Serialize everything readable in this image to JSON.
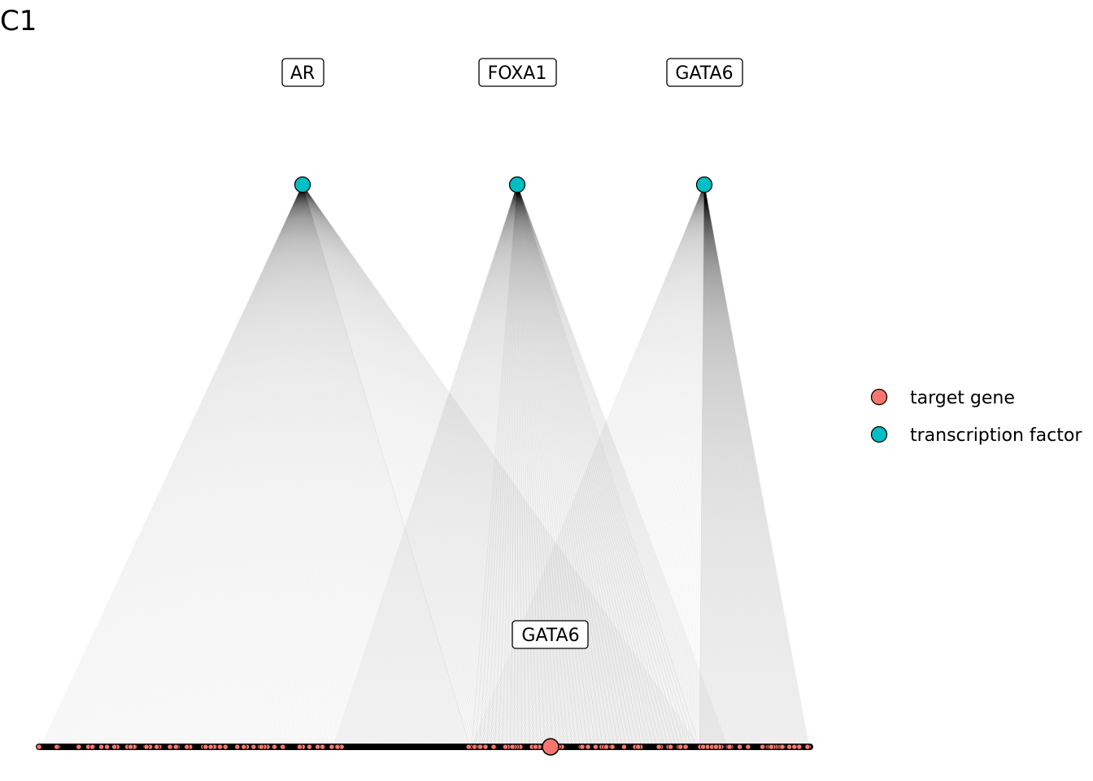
{
  "panel_label": "C1",
  "transcription_factors": [
    {
      "name": "AR",
      "label": "AR"
    },
    {
      "name": "FOXA1",
      "label": "FOXA1"
    },
    {
      "name": "GATA6",
      "label": "GATA6"
    }
  ],
  "highlighted_target": {
    "label": "GATA6"
  },
  "legend": {
    "items": [
      {
        "label": "target gene",
        "color": "#F8766D"
      },
      {
        "label": "transcription factor",
        "color": "#00BFC4"
      }
    ]
  },
  "colors": {
    "target_gene": "#F8766D",
    "transcription_factor": "#00BFC4",
    "edge": "#000000",
    "outline": "#000000"
  }
}
